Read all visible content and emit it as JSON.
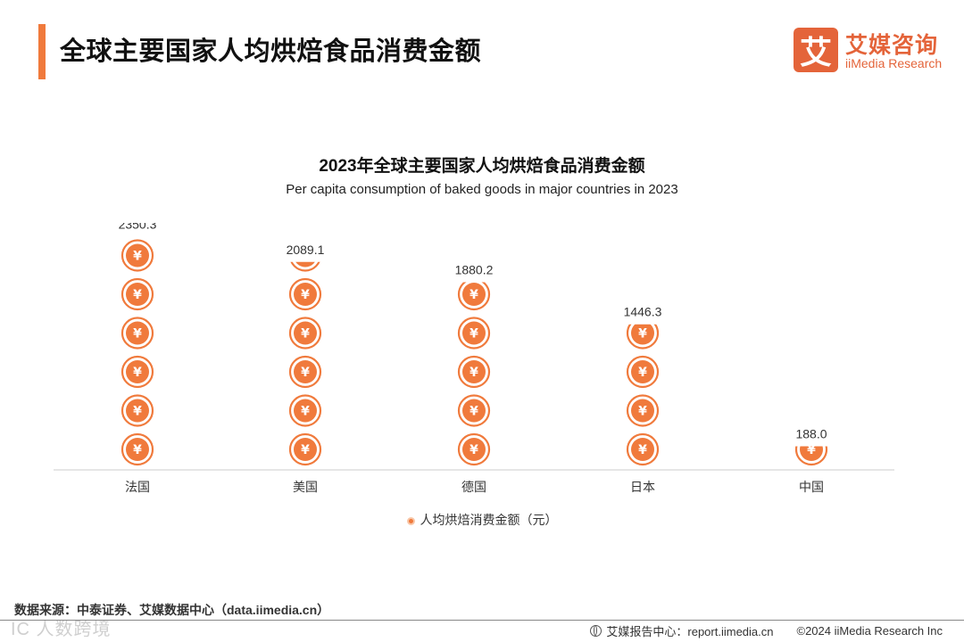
{
  "header": {
    "title": "全球主要国家人均烘焙食品消费金额"
  },
  "logo": {
    "mark": "艾",
    "name_cn": "艾媒咨询",
    "name_en": "iiMedia Research"
  },
  "chart_data": {
    "type": "bar",
    "style": "pictograph-coin-stack",
    "title": "2023年全球主要国家人均烘焙食品消费金额",
    "subtitle": "Per capita consumption of baked goods in major countries in 2023",
    "categories": [
      "法国",
      "美国",
      "德国",
      "日本",
      "中国"
    ],
    "series": [
      {
        "name": "人均烘焙消费金额（元）",
        "values": [
          2350.3,
          2089.1,
          1880.2,
          1446.3,
          188.0
        ]
      }
    ],
    "value_labels": [
      "2350.3",
      "2089.1",
      "1880.2",
      "1446.3",
      "188.0"
    ],
    "units_per_symbol": 400,
    "symbol": "¥",
    "ylim": [
      0,
      2400
    ],
    "color": "#f07a3c"
  },
  "footer": {
    "source": "数据来源：中泰证券、艾媒数据中心（data.iimedia.cn）",
    "watermark": "IC 人数跨境",
    "report_center": "艾媒报告中心：report.iimedia.cn",
    "copyright": "©2024 iiMedia Research  Inc"
  }
}
